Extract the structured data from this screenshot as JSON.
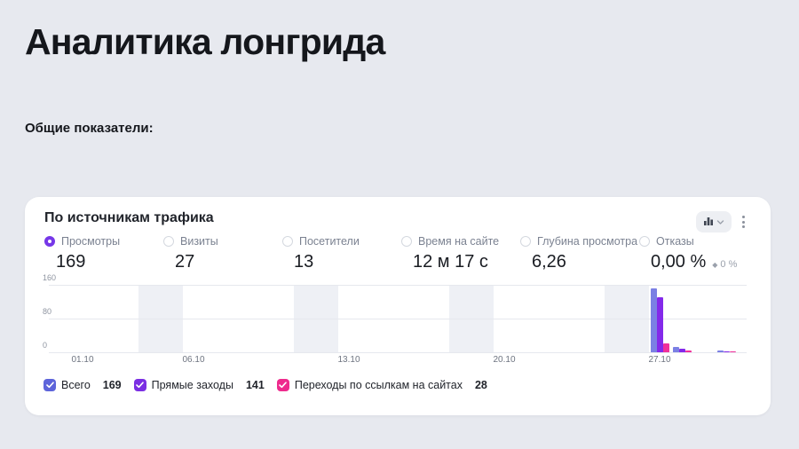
{
  "page": {
    "title": "Аналитика лонгрида",
    "subtitle": "Общие показатели:"
  },
  "card": {
    "title": "По источникам трафика",
    "controls": {
      "chart_type_icon": "bar-chart-icon",
      "chevron_icon": "chevron-down-icon",
      "menu_icon": "kebab-menu-icon"
    },
    "metrics": [
      {
        "label": "Просмотры",
        "value": "169",
        "selected": true
      },
      {
        "label": "Визиты",
        "value": "27",
        "selected": false
      },
      {
        "label": "Посетители",
        "value": "13",
        "selected": false
      },
      {
        "label": "Время на сайте",
        "value": "12 м 17 с",
        "selected": false
      },
      {
        "label": "Глубина просмотра",
        "value": "6,26",
        "selected": false
      },
      {
        "label": "Отказы",
        "value": "0,00 %",
        "selected": false,
        "delta_icon": "diamond-icon",
        "delta_text": "0 %"
      }
    ],
    "legend": [
      {
        "label": "Всего",
        "value": "169",
        "color": "#5d64da"
      },
      {
        "label": "Прямые заходы",
        "value": "141",
        "color": "#7b2fe3"
      },
      {
        "label": "Переходы по ссылкам на сайтах",
        "value": "28",
        "color": "#ee2b8d"
      }
    ]
  },
  "chart_data": {
    "type": "bar",
    "title": "По источникам трафика",
    "xlabel": "",
    "ylabel": "",
    "ylim": [
      0,
      160
    ],
    "y_ticks": [
      0,
      80,
      160
    ],
    "x_ticks": [
      {
        "label": "01.10",
        "day": 1
      },
      {
        "label": "06.10",
        "day": 6
      },
      {
        "label": "13.10",
        "day": 13
      },
      {
        "label": "20.10",
        "day": 20
      },
      {
        "label": "27.10",
        "day": 27
      }
    ],
    "days_range": [
      1,
      31
    ],
    "weekend_bands": [
      [
        4,
        5
      ],
      [
        11,
        12
      ],
      [
        18,
        19
      ],
      [
        25,
        26
      ]
    ],
    "grid": true,
    "legend_position": "bottom",
    "series": [
      {
        "name": "Всего",
        "color": "#7b80e4",
        "total": 169
      },
      {
        "name": "Прямые заходы",
        "color": "#8429ea",
        "total": 141
      },
      {
        "name": "Переходы по ссылкам на сайтах",
        "color": "#f0309a",
        "total": 28
      }
    ],
    "groups": [
      {
        "day": 27,
        "values": [
          152,
          130,
          21
        ]
      },
      {
        "day": 28,
        "values": [
          13,
          8,
          4
        ]
      },
      {
        "day": 30,
        "values": [
          4,
          3,
          3
        ]
      }
    ]
  }
}
